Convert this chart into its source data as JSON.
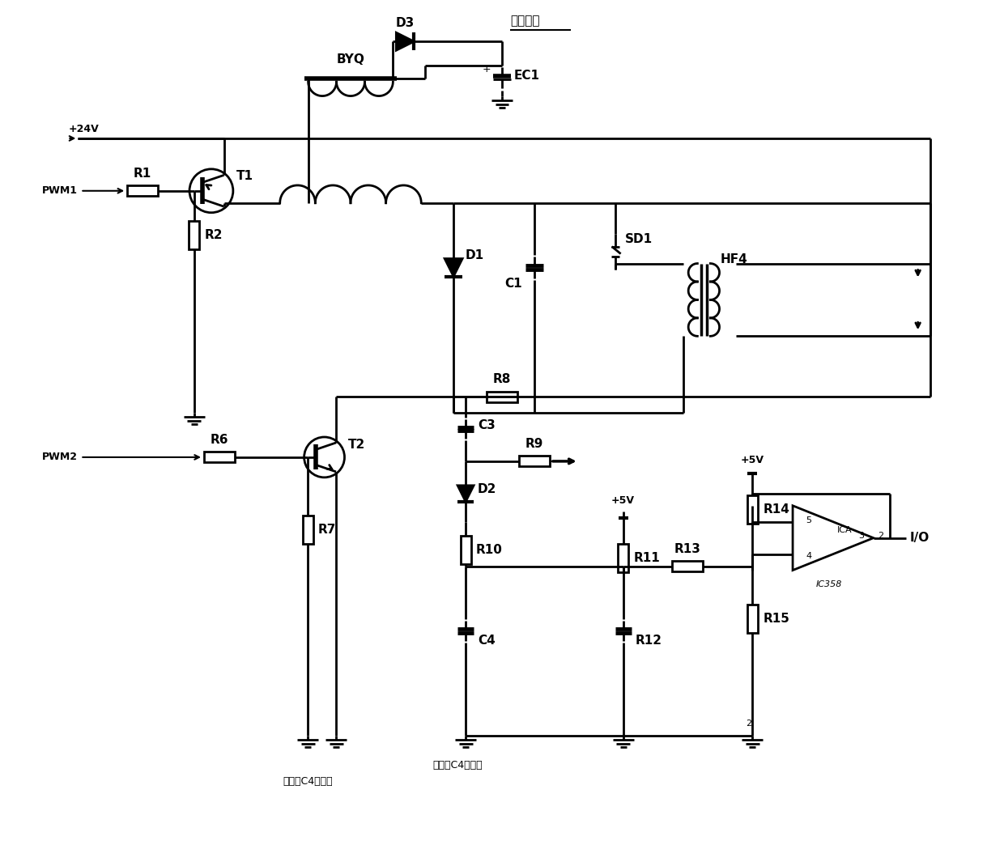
{
  "bg": "#ffffff",
  "lc": "#000000",
  "lw": 2.0,
  "fs": 11,
  "labels": {
    "T1": "T1",
    "T2": "T2",
    "R1": "R1",
    "R2": "R2",
    "R6": "R6",
    "R7": "R7",
    "R8": "R8",
    "R9": "R9",
    "R10": "R10",
    "R11": "R11",
    "R12": "R12",
    "R13": "R13",
    "R14": "R14",
    "R15": "R15",
    "D1": "D1",
    "D2": "D2",
    "D3": "D3",
    "C1": "C1",
    "C3": "C3",
    "C4": "C4",
    "EC1": "EC1",
    "BYQ": "BYQ",
    "SD1": "SD1",
    "HF4": "HF4",
    "PWM1": "PWM1",
    "PWM2": "PWM2",
    "V24": "+24V",
    "vd": "电压检湋",
    "IC358": "IC358",
    "ICA": "ICA",
    "IO": "I/O",
    "note": "有火时C4为负値",
    "V5a": "+5V",
    "V5b": "+5V",
    "pin3": "3",
    "pin5": "5",
    "pin4": "4",
    "pin2": "2",
    "pinN": "2"
  }
}
